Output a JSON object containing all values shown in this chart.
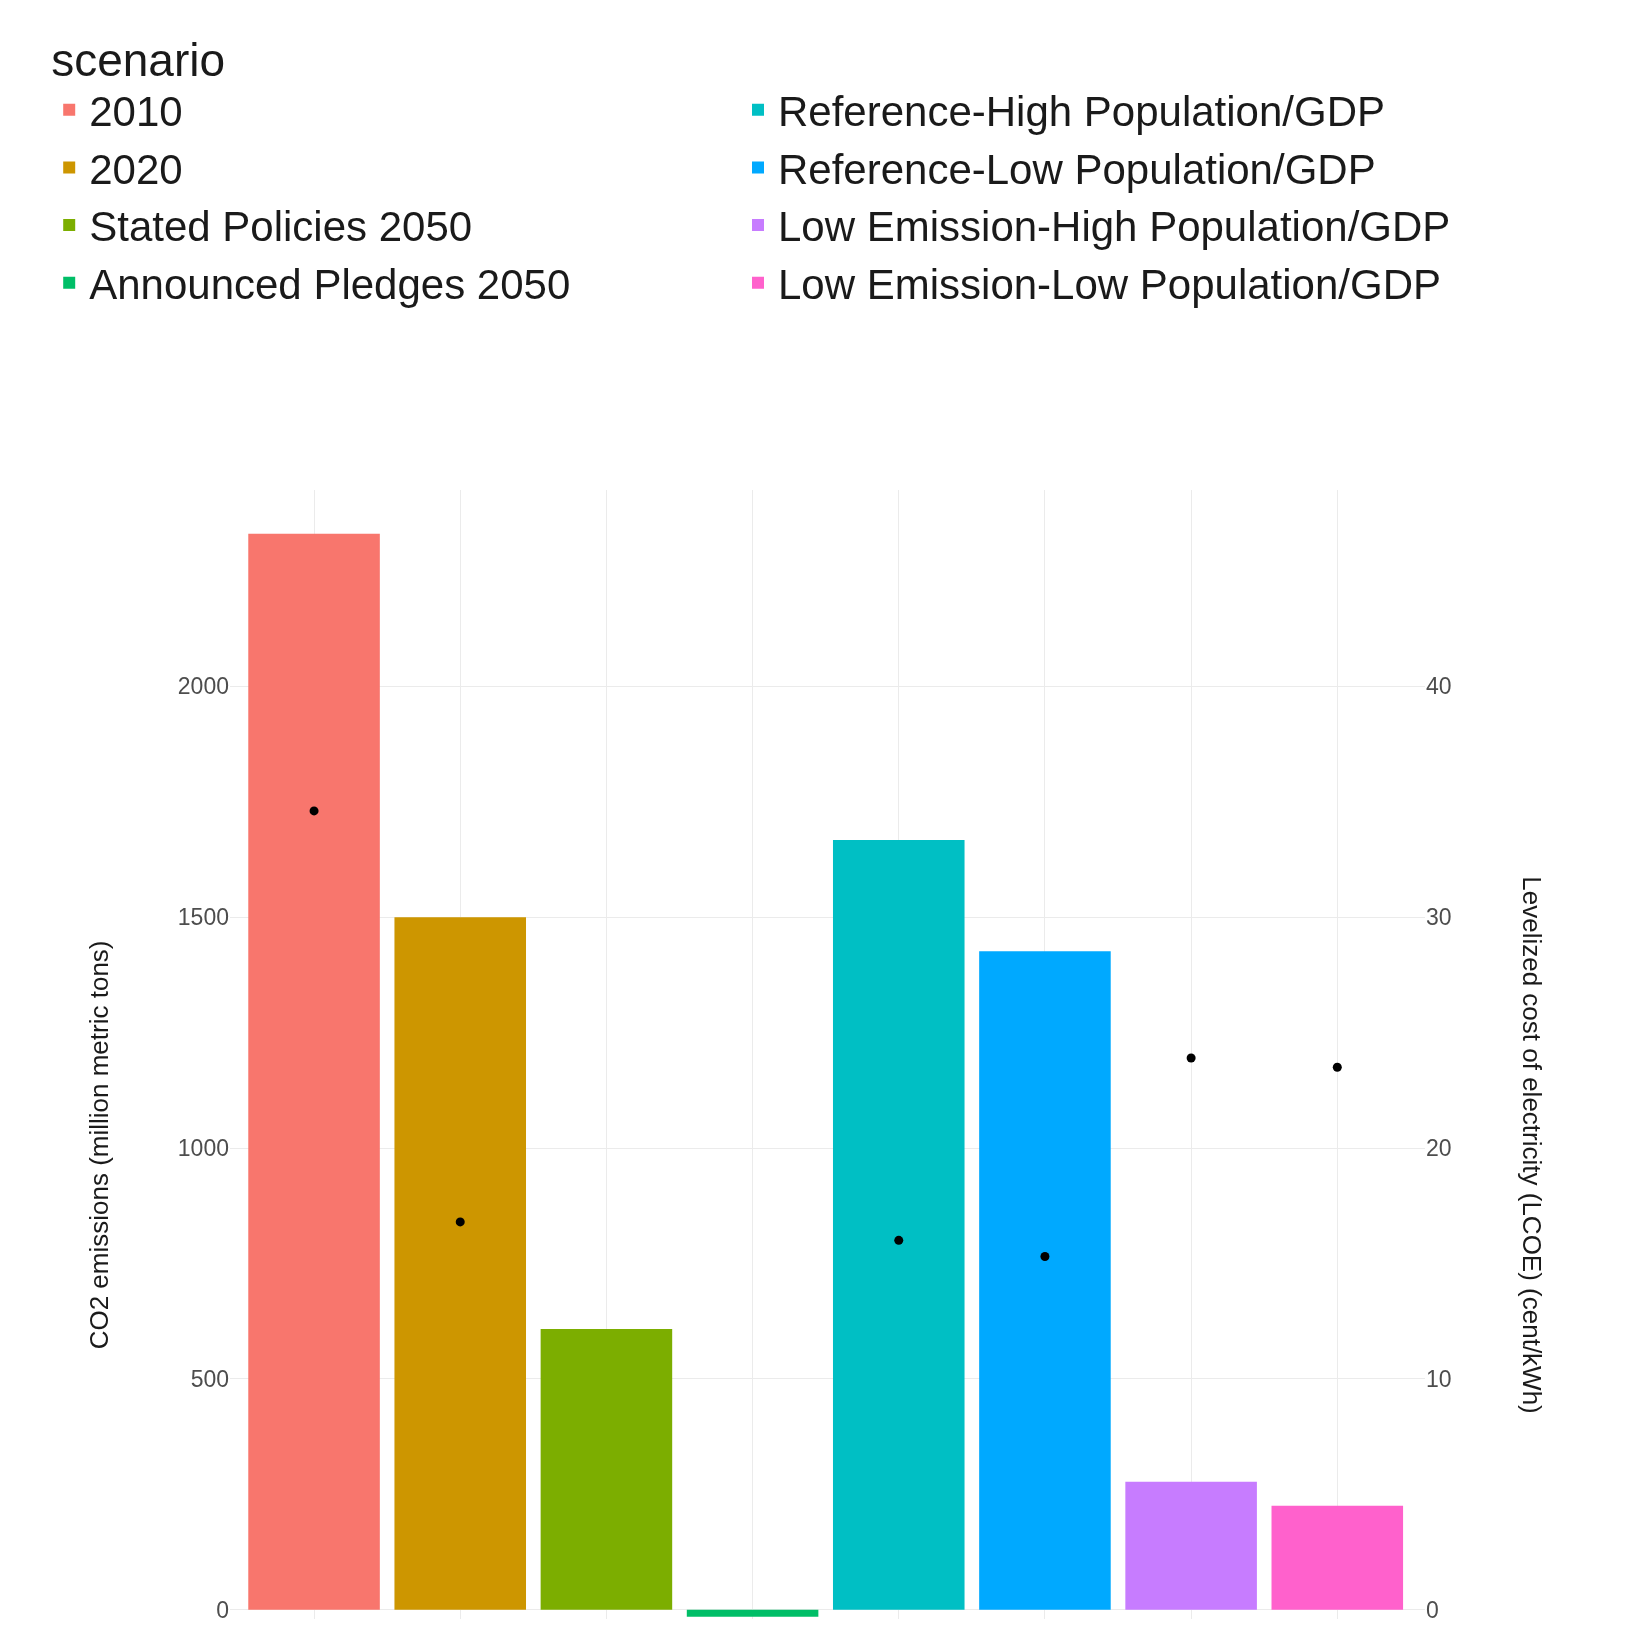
{
  "chart_data": {
    "type": "bar",
    "legend_title": "scenario",
    "xlabel": null,
    "ylabel": "CO2 emissions (million metric tons)",
    "y2label": "Levelized cost of electricity (LCOE) (cent/kWh)",
    "categories": [
      null,
      null,
      null,
      null,
      null,
      null,
      null,
      null
    ],
    "series": [
      {
        "name": "2010",
        "color": "#f8766d",
        "values": [
          2330,
          null,
          null,
          null,
          null,
          null,
          null,
          null
        ]
      },
      {
        "name": "2020",
        "color": "#cd9600",
        "values": [
          null,
          1500,
          null,
          null,
          null,
          null,
          null,
          null
        ]
      },
      {
        "name": "Stated Policies 2050",
        "color": "#7cae00",
        "values": [
          null,
          null,
          608,
          null,
          null,
          null,
          null,
          null
        ]
      },
      {
        "name": "Announced Pledges 2050",
        "color": "#00be67",
        "values": [
          null,
          null,
          null,
          -15,
          null,
          null,
          null,
          null
        ]
      },
      {
        "name": "Reference-High Population/GDP",
        "color": "#00bfc4",
        "values": [
          null,
          null,
          null,
          null,
          1667,
          null,
          null,
          null
        ]
      },
      {
        "name": "Reference-Low Population/GDP",
        "color": "#00a9ff",
        "values": [
          null,
          null,
          null,
          null,
          null,
          1426,
          null,
          null
        ]
      },
      {
        "name": "Low Emission-High Population/GDP",
        "color": "#c77cff",
        "values": [
          null,
          null,
          null,
          null,
          null,
          null,
          277,
          null
        ]
      },
      {
        "name": "Low Emission-Low Population/GDP",
        "color": "#ff61cc",
        "values": [
          null,
          null,
          null,
          null,
          null,
          null,
          null,
          225
        ]
      },
      {
        "type": "scatter",
        "axis": "y2",
        "color": "#000000",
        "marker": "circle",
        "values": [
          34.6,
          16.8,
          null,
          null,
          16.0,
          15.3,
          23.9,
          23.5
        ]
      }
    ],
    "ylim": [
      -20,
      2425
    ],
    "yticks": [
      0,
      500,
      1000,
      1500,
      2000
    ],
    "y2lim": [
      -0.4,
      48.5
    ],
    "y2ticks": [
      0,
      10,
      20,
      30,
      40
    ],
    "grid": true,
    "legend": "top",
    "tick_labels": "y"
  }
}
